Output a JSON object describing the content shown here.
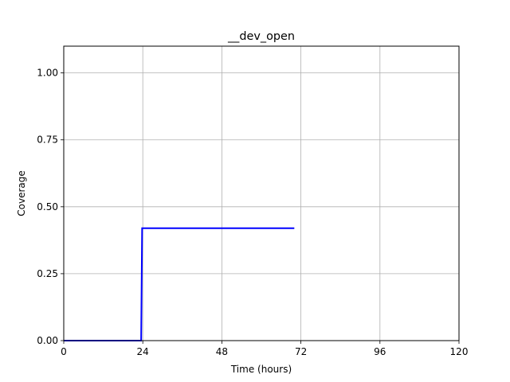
{
  "chart_data": {
    "type": "line",
    "title": "__dev_open",
    "xlabel": "Time (hours)",
    "ylabel": "Coverage",
    "xlim": [
      0,
      120
    ],
    "ylim": [
      0,
      1.1
    ],
    "xticks": [
      0,
      24,
      48,
      72,
      96,
      120
    ],
    "xtick_labels": [
      "0",
      "24",
      "48",
      "72",
      "96",
      "120"
    ],
    "yticks": [
      0,
      0.25,
      0.5,
      0.75,
      1.0
    ],
    "ytick_labels": [
      "0.00",
      "0.25",
      "0.50",
      "0.75",
      "1.00"
    ],
    "grid": true,
    "series": [
      {
        "color": "#0000ff",
        "x": [
          0,
          23.5,
          23.8,
          70
        ],
        "y": [
          0,
          0,
          0.42,
          0.42
        ]
      }
    ]
  }
}
